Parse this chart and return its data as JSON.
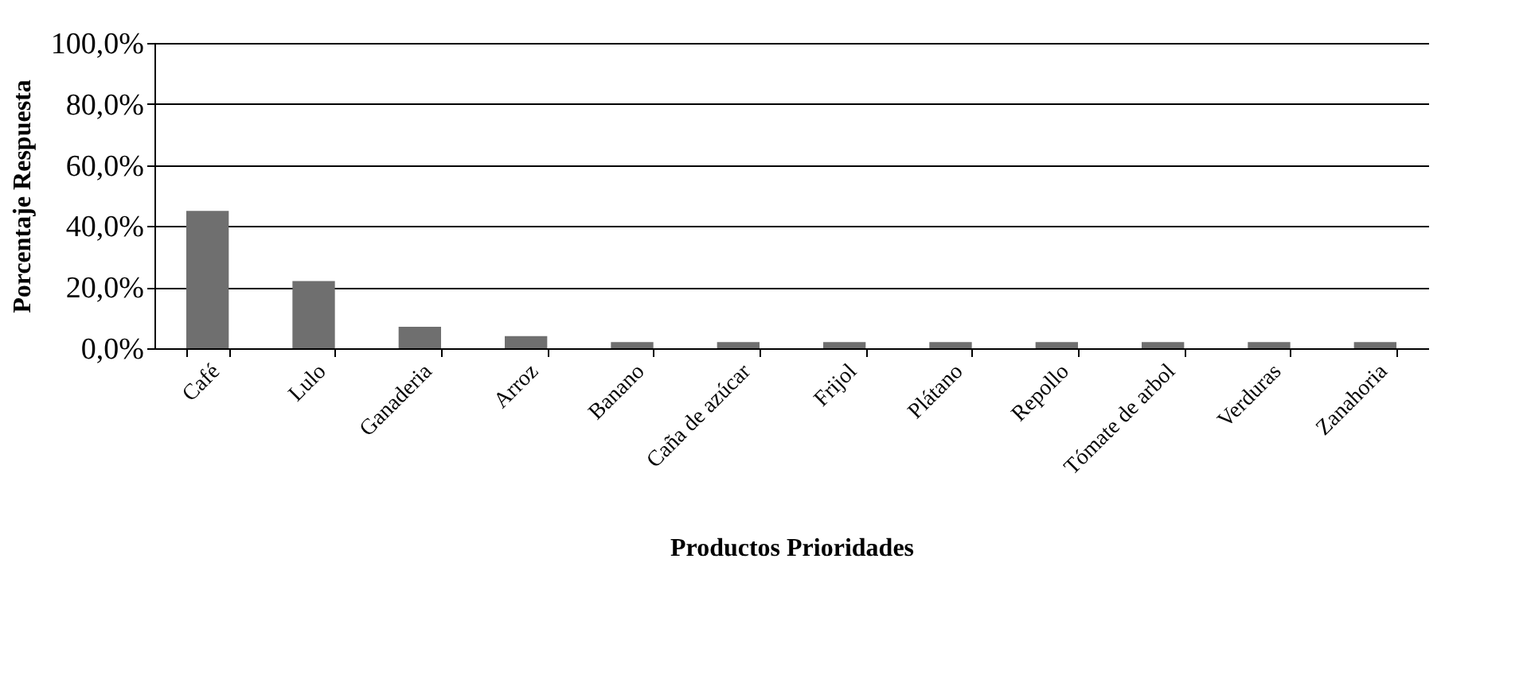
{
  "chart_data": {
    "type": "bar",
    "xlabel": "Productos Prioridades",
    "ylabel": "Porcentaje Respuesta",
    "categories": [
      "Café",
      "Lulo",
      "Ganaderia",
      "Arroz",
      "Banano",
      "Caña de azúcar",
      "Frijol",
      "Plátano",
      "Repollo",
      "Tómate de arbol",
      "Verduras",
      "Zanahoria"
    ],
    "values": [
      45,
      22,
      7,
      4,
      2,
      2,
      2,
      2,
      2,
      2,
      2,
      2
    ],
    "color": "#6f6f6f",
    "ylim": [
      0,
      100
    ],
    "yticks": [
      {
        "value": 0,
        "label": "0,0%"
      },
      {
        "value": 20,
        "label": "20,0%"
      },
      {
        "value": 40,
        "label": "40,0%"
      },
      {
        "value": 60,
        "label": "60,0%"
      },
      {
        "value": 80,
        "label": "80,0%"
      },
      {
        "value": 100,
        "label": "100,0%"
      }
    ],
    "grid": "y"
  }
}
